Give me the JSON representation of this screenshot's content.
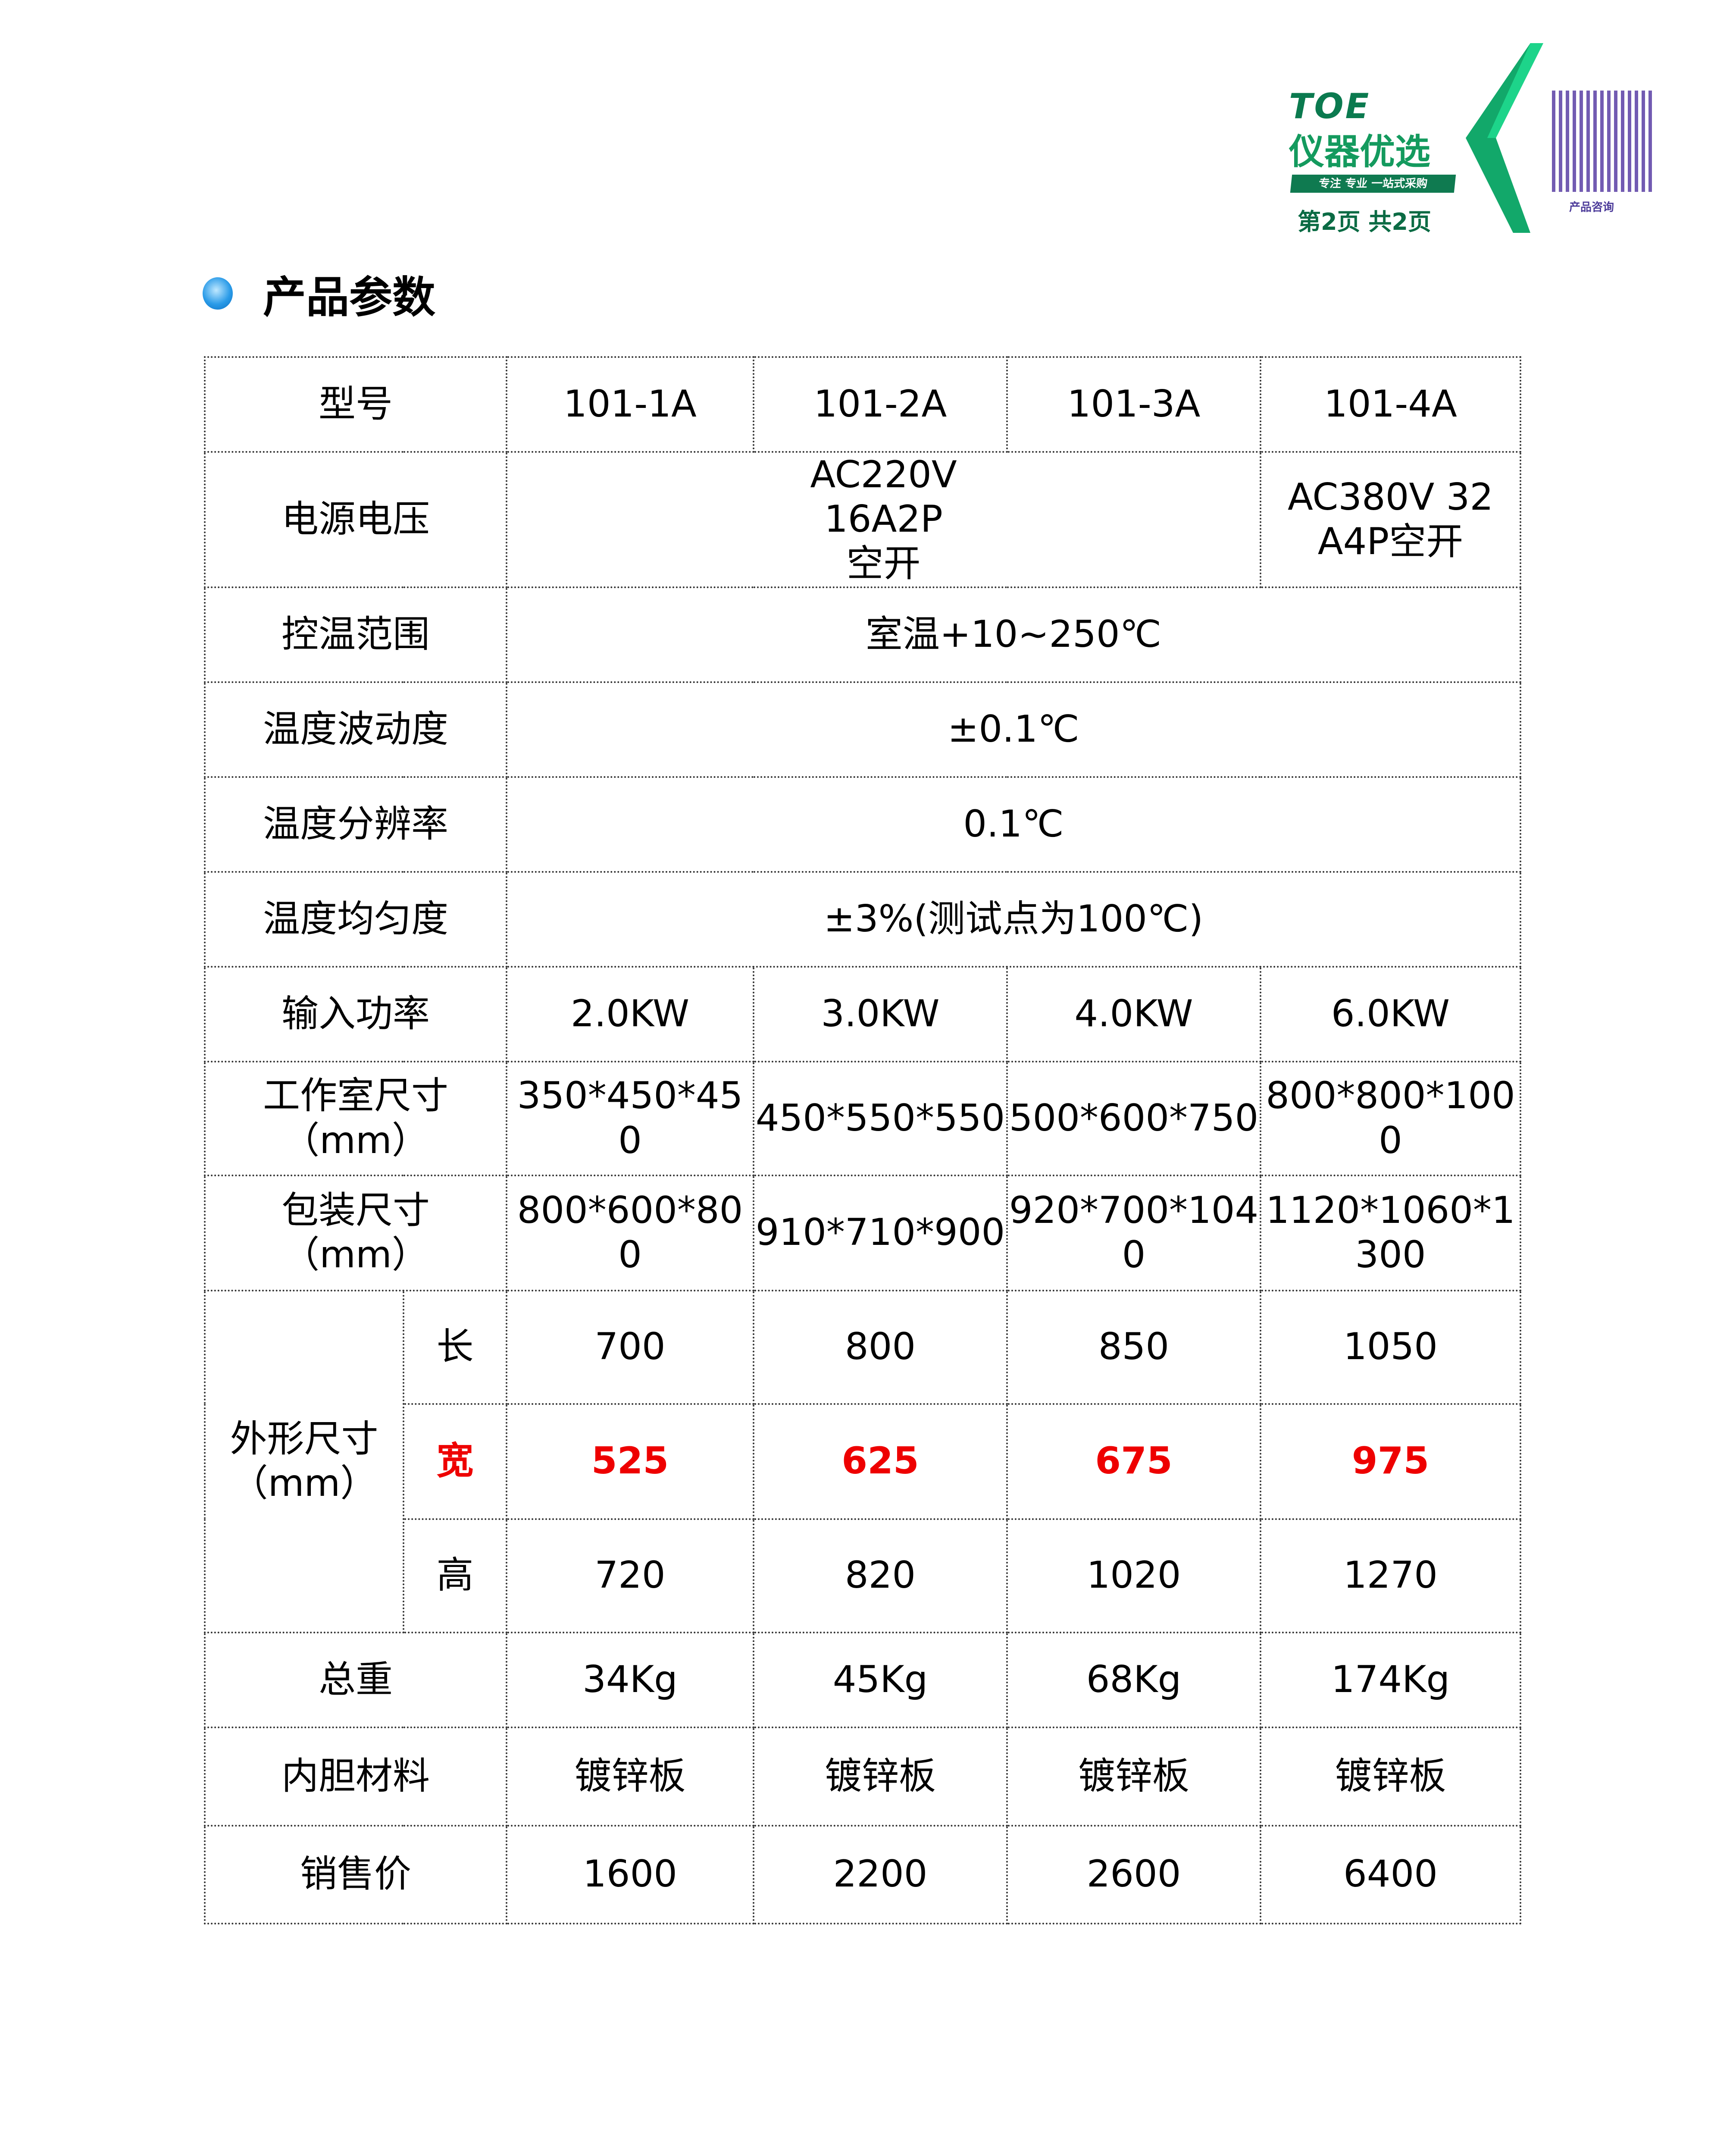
{
  "header": {
    "brand": "TOE",
    "brand_cn": "仪器优选",
    "slogan": "专注 专业 一站式采购",
    "page_indicator": "第2页 共2页",
    "qr_caption": "产品咨询",
    "accent": "#0b7a4f"
  },
  "section": {
    "title": "产品参数"
  },
  "table": {
    "models": [
      "101-1A",
      "101-2A",
      "101-3A",
      "101-4A"
    ],
    "labels": {
      "model": "型号",
      "voltage": "电源电压",
      "range": "控温范围",
      "fluct": "温度波动度",
      "resolution": "温度分辨率",
      "uniform": "温度均匀度",
      "power": "输入功率",
      "chamber": "工作室尺寸（mm）",
      "package": "包装尺寸（mm）",
      "outer": "外形尺寸（mm）",
      "length": "长",
      "width": "宽",
      "height": "高",
      "weight": "总重",
      "liner": "内胆材料",
      "price": "销售价"
    },
    "voltage": [
      "AC220V 16A2P空开",
      "AC380V 32A4P空开"
    ],
    "range": "室温+10~250℃",
    "fluct": "±0.1℃",
    "resolution": "0.1℃",
    "uniform": "±3%(测试点为100℃)",
    "power": [
      "2.0KW",
      "3.0KW",
      "4.0KW",
      "6.0KW"
    ],
    "chamber": [
      "350*450*450",
      "450*550*550",
      "500*600*750",
      "800*800*1000"
    ],
    "package": [
      "800*600*800",
      "910*710*900",
      "920*700*1040",
      "1120*1060*1300"
    ],
    "length": [
      "700",
      "800",
      "850",
      "1050"
    ],
    "width": [
      "525",
      "625",
      "675",
      "975"
    ],
    "height": [
      "720",
      "820",
      "1020",
      "1270"
    ],
    "weight": [
      "34Kg",
      "45Kg",
      "68Kg",
      "174Kg"
    ],
    "liner": [
      "镀锌板",
      "镀锌板",
      "镀锌板",
      "镀锌板"
    ],
    "price": [
      "1600",
      "2200",
      "2600",
      "6400"
    ],
    "highlight_color": "#e00000"
  }
}
